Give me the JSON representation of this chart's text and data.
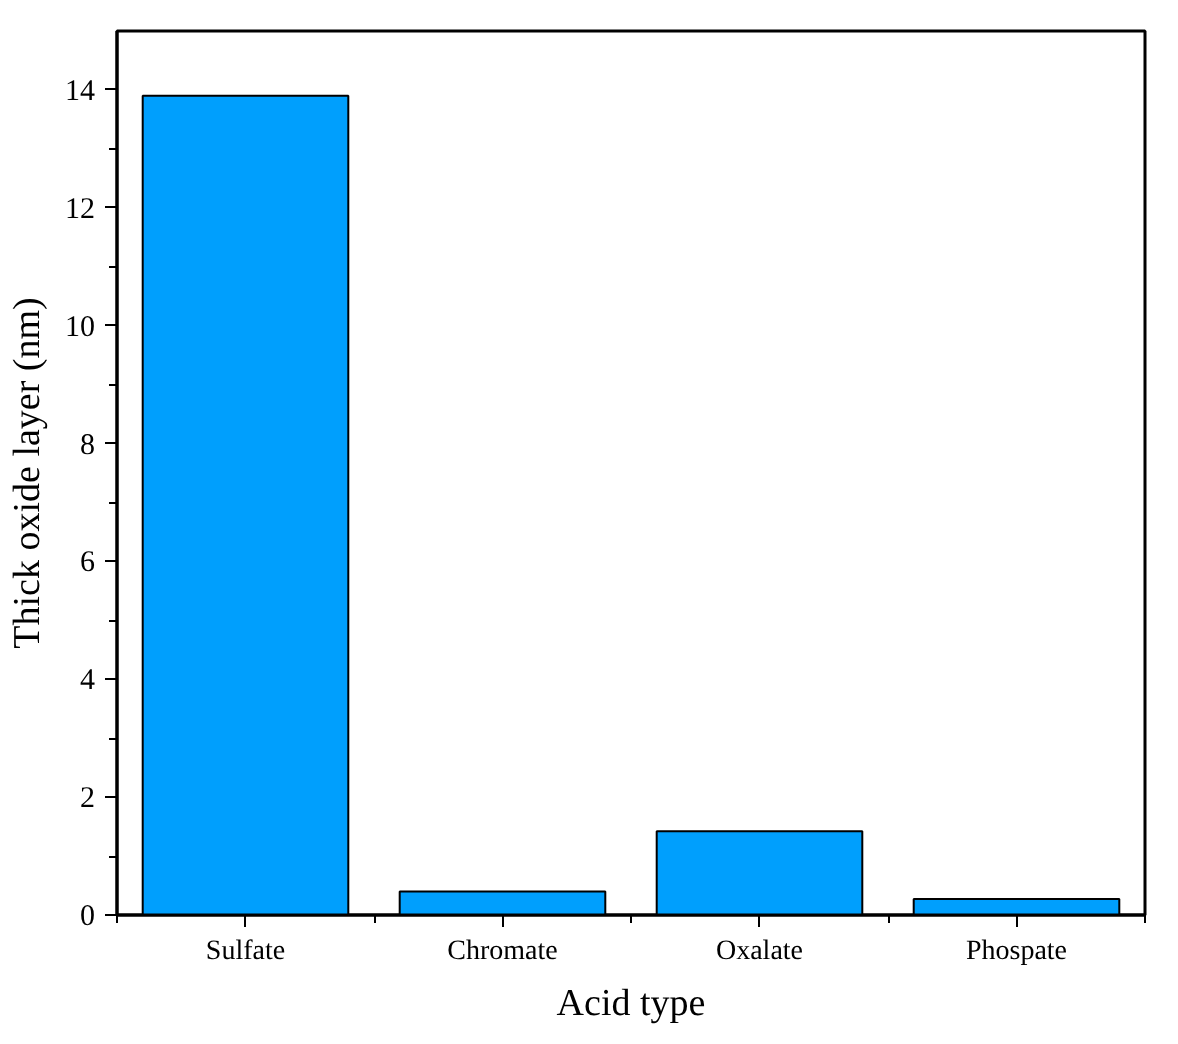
{
  "chart_data": {
    "type": "bar",
    "xlabel": "Acid type",
    "ylabel": "Thick oxide layer (nm)",
    "categories": [
      "Sulfate",
      "Chromate",
      "Oxalate",
      "Phospate"
    ],
    "values": [
      13.9,
      0.4,
      1.42,
      0.27
    ],
    "color": "#009ffd",
    "ylim": [
      0,
      15
    ],
    "yticks": [
      0,
      2,
      4,
      6,
      8,
      10,
      12,
      14
    ],
    "grid": false
  }
}
